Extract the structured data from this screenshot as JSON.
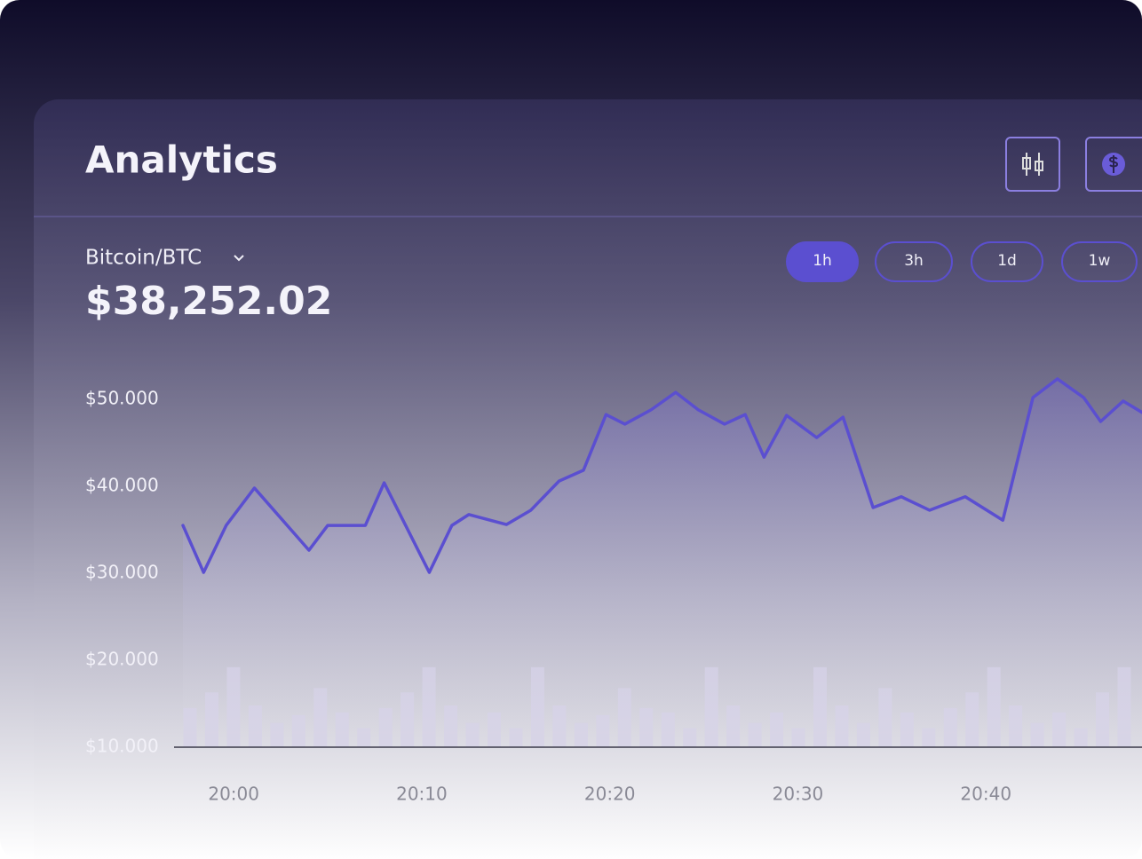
{
  "header": {
    "title": "Analytics",
    "pair": "Bitcoin/BTC",
    "price": "$38,252.02",
    "ranges": [
      "1h",
      "3h",
      "1d",
      "1w"
    ]
  },
  "chart_data": {
    "type": "line",
    "color": "#5b4fd0",
    "x": [
      1197.3,
      1198.4,
      1199.6,
      1201.1,
      1204,
      1205,
      1207,
      1208,
      1210.4,
      1211.6,
      1212.5,
      1214.5,
      1215.8,
      1217.3,
      1218.6,
      1219.8,
      1220.8,
      1222.2,
      1223.5,
      1224.7,
      1226.1,
      1227.2,
      1228.2,
      1229.4,
      1231,
      1232.4,
      1234,
      1235.5,
      1237,
      1238.9,
      1240.9,
      1242.5,
      1243.8,
      1245.2,
      1246.1,
      1247.3,
      1248.3
    ],
    "values": [
      35500,
      30100,
      35500,
      39800,
      32650,
      35500,
      35500,
      40400,
      30100,
      35500,
      36750,
      35600,
      37250,
      40600,
      41850,
      48250,
      47150,
      48800,
      50800,
      48800,
      47150,
      48250,
      43350,
      48150,
      45600,
      47950,
      37550,
      38800,
      37250,
      38800,
      36100,
      50200,
      52350,
      50200,
      47450,
      49800,
      48500
    ],
    "volume": {
      "color": "#d6d2e8",
      "values": [
        14500,
        16300,
        19200,
        14800,
        12800,
        13700,
        16800,
        14000,
        12200,
        14500,
        16300,
        19200,
        14800,
        12800,
        14000,
        12200,
        19200,
        14800,
        12800,
        13700,
        16800,
        14500,
        14000,
        12200,
        19200,
        14800,
        12800,
        14000,
        12200,
        19200,
        14800,
        12800,
        16800,
        14000,
        12200,
        14500,
        16300,
        19200,
        14800,
        12800,
        14000,
        12200,
        16300,
        19200
      ]
    },
    "xlim": [
      1197.3,
      1248.3
    ],
    "xticks": [
      {
        "value": 1200,
        "label": "20:00"
      },
      {
        "value": 1210,
        "label": "20:10"
      },
      {
        "value": 1220,
        "label": "20:20"
      },
      {
        "value": 1230,
        "label": "20:30"
      },
      {
        "value": 1240,
        "label": "20:40"
      }
    ],
    "ylim": [
      10000,
      50000
    ],
    "yticks": [
      {
        "value": 10000,
        "label": "$10.000"
      },
      {
        "value": 20000,
        "label": "$20.000"
      },
      {
        "value": 30000,
        "label": "$30.000"
      },
      {
        "value": 40000,
        "label": "$40.000"
      },
      {
        "value": 50000,
        "label": "$50.000"
      }
    ]
  }
}
